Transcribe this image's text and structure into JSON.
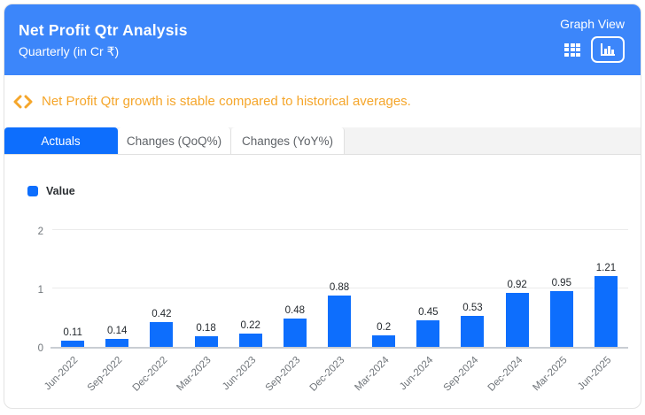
{
  "header": {
    "title": "Net Profit Qtr Analysis",
    "subtitle": "Quarterly (in Cr ₹)",
    "view_label": "Graph View",
    "table_icon": "table-view-icon",
    "graph_icon": "graph-view-icon",
    "background_color": "#3C86FA"
  },
  "notice": {
    "icon": "code-chevrons-icon",
    "text": "Net Profit Qtr growth is stable compared to historical averages.",
    "color": "#F5A62B"
  },
  "tabs": [
    {
      "label": "Actuals",
      "active": true
    },
    {
      "label": "Changes (QoQ%)",
      "active": false
    },
    {
      "label": "Changes (YoY%)",
      "active": false
    }
  ],
  "legend": {
    "label": "Value",
    "color": "#0D6EFD"
  },
  "chart_data": {
    "type": "bar",
    "title": "Net Profit Qtr Analysis",
    "xlabel": "",
    "ylabel": "",
    "categories": [
      "Jun-2022",
      "Sep-2022",
      "Dec-2022",
      "Mar-2023",
      "Jun-2023",
      "Sep-2023",
      "Dec-2023",
      "Mar-2024",
      "Jun-2024",
      "Sep-2024",
      "Dec-2024",
      "Mar-2025",
      "Jun-2025"
    ],
    "values": [
      0.11,
      0.14,
      0.42,
      0.18,
      0.22,
      0.48,
      0.88,
      0.2,
      0.45,
      0.53,
      0.92,
      0.95,
      1.21
    ],
    "ylim": [
      0,
      2
    ],
    "yticks": [
      0,
      1,
      2
    ],
    "bar_color": "#0D6EFD",
    "grid": true,
    "legend_position": "top-left",
    "legend_entries": [
      "Value"
    ]
  }
}
